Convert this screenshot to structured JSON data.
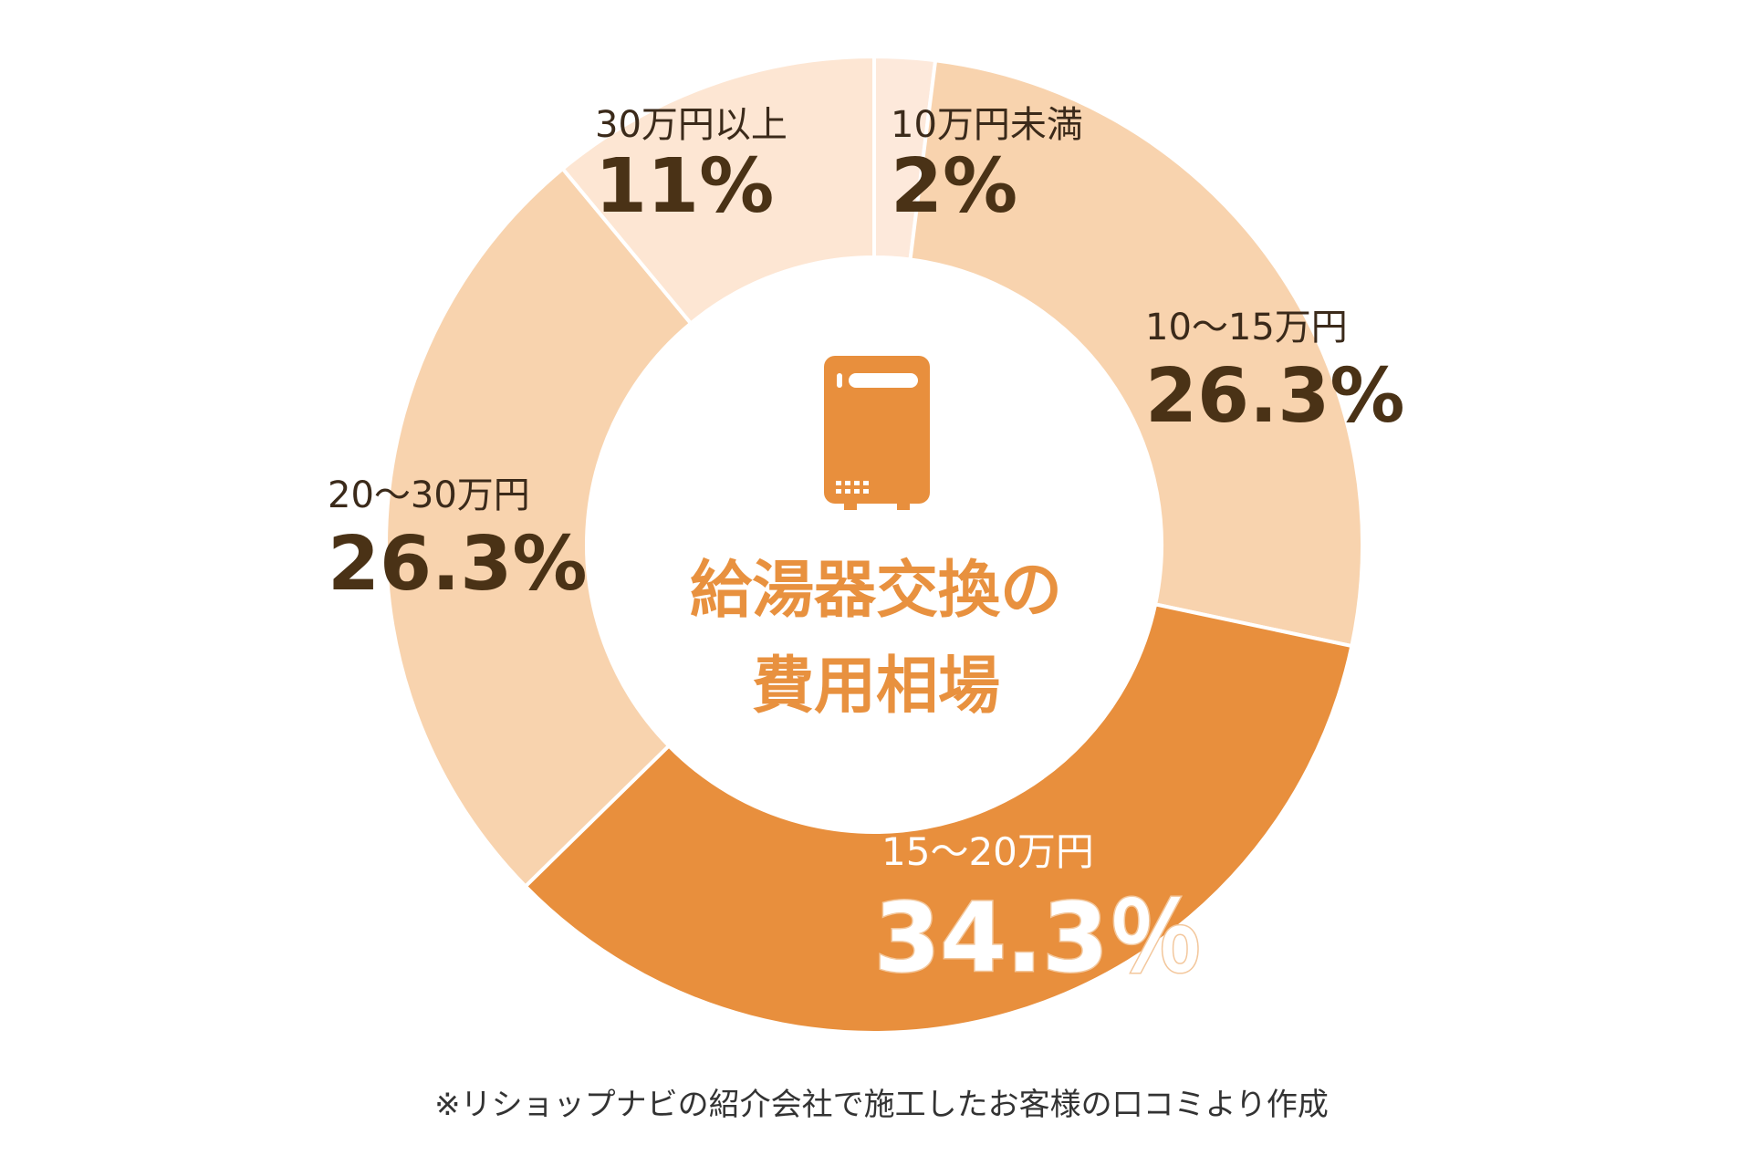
{
  "chart_data": {
    "type": "pie",
    "variant": "donut",
    "title": "給湯器交換の費用相場",
    "title_lines": [
      "給湯器交換の",
      "費用相場"
    ],
    "categories": [
      "10万円未満",
      "10〜15万円",
      "15〜20万円",
      "20〜30万円",
      "30万円以上"
    ],
    "values": [
      2,
      26.3,
      34.3,
      26.3,
      11
    ],
    "value_labels": [
      "2%",
      "26.3%",
      "34.3％",
      "26.3%",
      "11%"
    ],
    "colors": [
      "#fde9db",
      "#f8d3ae",
      "#e88f3d",
      "#f8d3ae",
      "#fde6d3"
    ],
    "start": "top",
    "direction": "clockwise",
    "center_icon": "water-heater-icon",
    "footnote": "※リショップナビの紹介会社で施工したお客様の口コミより作成"
  }
}
